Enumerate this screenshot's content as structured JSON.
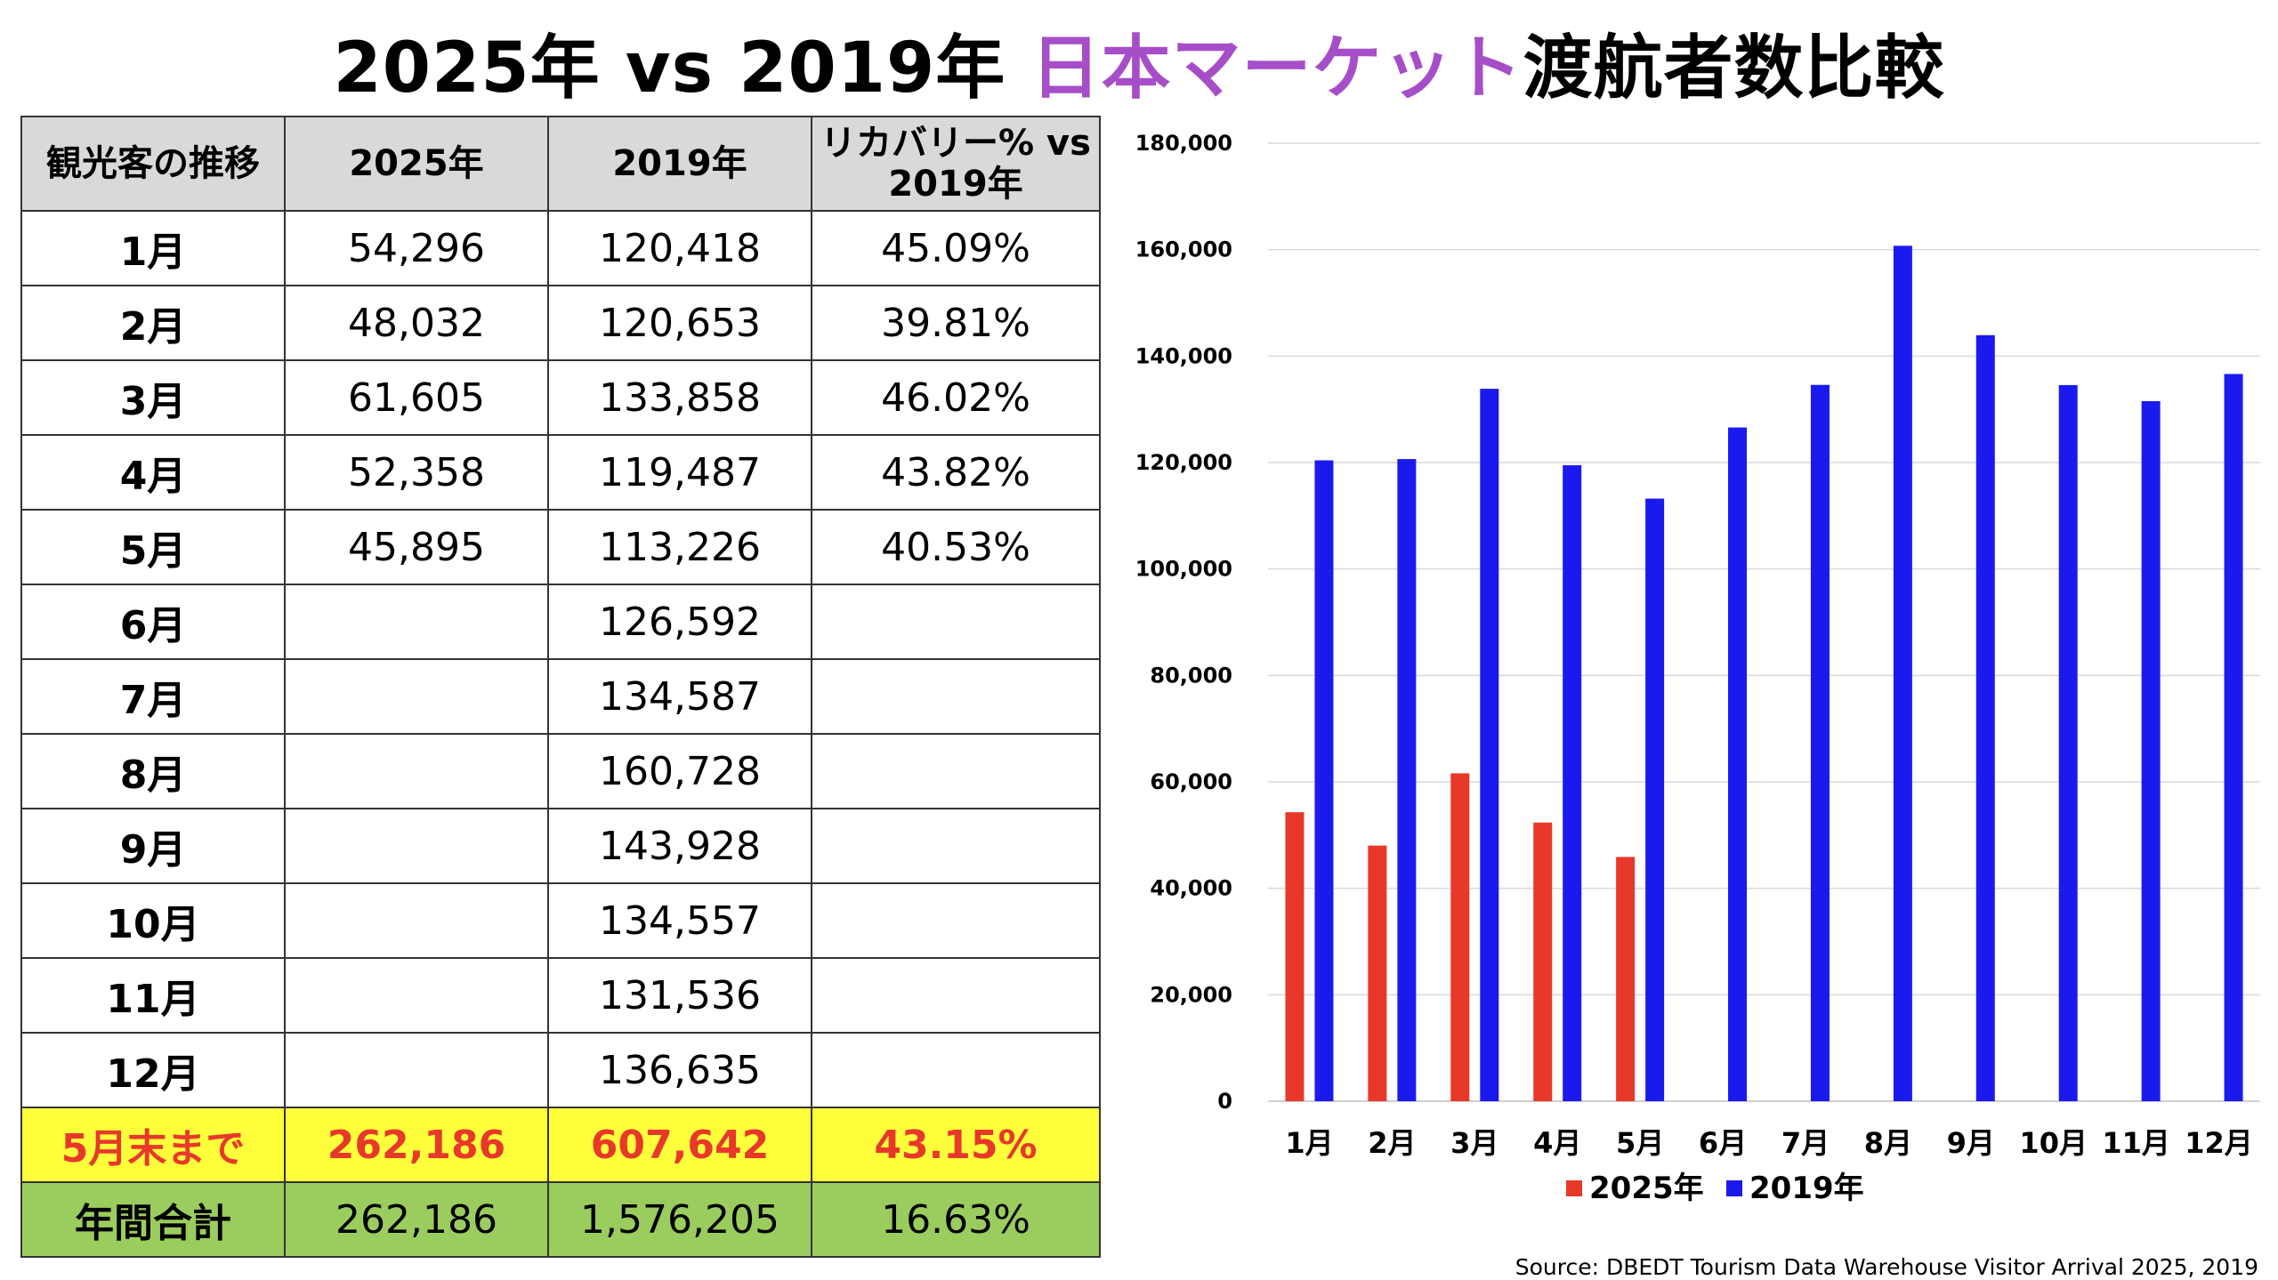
{
  "title": {
    "part1": "2025年 vs 2019年 ",
    "accent": "日本マーケット",
    "part2": "渡航者数比較"
  },
  "colors": {
    "accent": "#a64ec8",
    "series_2025": "#e8382a",
    "series_2019": "#1a1aef",
    "header_bg": "#d9d9d9",
    "ytd_bg": "#ffff3c",
    "annual_bg": "#9bcc5e"
  },
  "table": {
    "headers": [
      "観光客の推移",
      "2025年",
      "2019年",
      "リカバリー% vs 2019年"
    ],
    "rows": [
      {
        "month": "1月",
        "y2025": "54,296",
        "y2019": "120,418",
        "recovery": "45.09%"
      },
      {
        "month": "2月",
        "y2025": "48,032",
        "y2019": "120,653",
        "recovery": "39.81%"
      },
      {
        "month": "3月",
        "y2025": "61,605",
        "y2019": "133,858",
        "recovery": "46.02%"
      },
      {
        "month": "4月",
        "y2025": "52,358",
        "y2019": "119,487",
        "recovery": "43.82%"
      },
      {
        "month": "5月",
        "y2025": "45,895",
        "y2019": "113,226",
        "recovery": "40.53%"
      },
      {
        "month": "6月",
        "y2025": "",
        "y2019": "126,592",
        "recovery": ""
      },
      {
        "month": "7月",
        "y2025": "",
        "y2019": "134,587",
        "recovery": ""
      },
      {
        "month": "8月",
        "y2025": "",
        "y2019": "160,728",
        "recovery": ""
      },
      {
        "month": "9月",
        "y2025": "",
        "y2019": "143,928",
        "recovery": ""
      },
      {
        "month": "10月",
        "y2025": "",
        "y2019": "134,557",
        "recovery": ""
      },
      {
        "month": "11月",
        "y2025": "",
        "y2019": "131,536",
        "recovery": ""
      },
      {
        "month": "12月",
        "y2025": "",
        "y2019": "136,635",
        "recovery": ""
      }
    ],
    "ytd": {
      "label": "5月末まで",
      "y2025": "262,186",
      "y2019": "607,642",
      "recovery": "43.15%"
    },
    "annual": {
      "label": "年間合計",
      "y2025": "262,186",
      "y2019": "1,576,205",
      "recovery": "16.63%"
    }
  },
  "chart_data": {
    "type": "bar",
    "categories": [
      "1月",
      "2月",
      "3月",
      "4月",
      "5月",
      "6月",
      "7月",
      "8月",
      "9月",
      "10月",
      "11月",
      "12月"
    ],
    "series": [
      {
        "name": "2025年",
        "values": [
          54296,
          48032,
          61605,
          52358,
          45895,
          null,
          null,
          null,
          null,
          null,
          null,
          null
        ]
      },
      {
        "name": "2019年",
        "values": [
          120418,
          120653,
          133858,
          119487,
          113226,
          126592,
          134587,
          160728,
          143928,
          134557,
          131536,
          136635
        ]
      }
    ],
    "ylim": [
      0,
      180000
    ],
    "yticks": [
      0,
      20000,
      40000,
      60000,
      80000,
      100000,
      120000,
      140000,
      160000,
      180000
    ],
    "ytick_labels": [
      "0",
      "20,000",
      "40,000",
      "60,000",
      "80,000",
      "100,000",
      "120,000",
      "140,000",
      "160,000",
      "180,000"
    ],
    "grid": true,
    "legend": "bottom"
  },
  "source": "Source: DBEDT Tourism Data Warehouse Visitor Arrival 2025, 2019"
}
